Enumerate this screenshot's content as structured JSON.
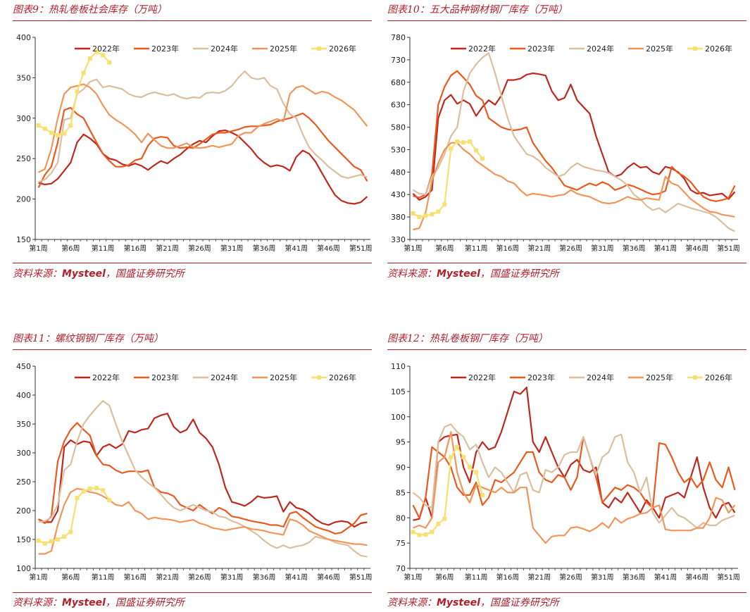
{
  "source_label": "资料来源：",
  "source_brand": "Mysteel",
  "source_rest": "，国盛证券研究所",
  "colors": {
    "2022年": "#c0281e",
    "2023年": "#ea5a1f",
    "2024年": "#dcbfa0",
    "2025年": "#f2955a",
    "2026年": "#f7e173",
    "accent": "#b3202a"
  },
  "panels": [
    {
      "title": "图表9：热轧卷板社会库存（万吨）"
    },
    {
      "title": "图表10：五大品种钢材钢厂库存（万吨）"
    },
    {
      "title": "图表11：螺纹钢钢厂库存（万吨）"
    },
    {
      "title": "图表12：热轧卷板钢厂库存（万吨）"
    }
  ],
  "chart_data": [
    {
      "type": "line",
      "title": "热轧卷板社会库存（万吨）",
      "ylim": [
        150,
        400
      ],
      "yticks": [
        150,
        200,
        250,
        300,
        350,
        400
      ],
      "xtick_labels": [
        "第1周",
        "第6周",
        "第11周",
        "第16周",
        "第21周",
        "第26周",
        "第31周",
        "第36周",
        "第41周",
        "第46周",
        "第51周"
      ],
      "series": [
        {
          "name": "2022年",
          "values": [
            220,
            218,
            219,
            225,
            235,
            245,
            270,
            280,
            275,
            268,
            256,
            250,
            248,
            243,
            241,
            244,
            241,
            236,
            242,
            247,
            244,
            250,
            255,
            262,
            268,
            272,
            270,
            278,
            284,
            285,
            282,
            278,
            270,
            262,
            252,
            245,
            240,
            242,
            240,
            235,
            252,
            260,
            256,
            246,
            232,
            218,
            205,
            198,
            195,
            194,
            196,
            203
          ]
        },
        {
          "name": "2023年",
          "values": [
            214,
            230,
            240,
            270,
            310,
            313,
            305,
            300,
            285,
            270,
            256,
            247,
            240,
            240,
            242,
            248,
            250,
            266,
            275,
            277,
            276,
            266,
            263,
            264,
            263,
            268,
            274,
            280,
            282,
            282,
            284,
            286,
            289,
            290,
            290,
            291,
            292,
            296,
            298,
            300,
            303,
            306,
            300,
            292,
            282,
            272,
            264,
            256,
            248,
            240,
            236,
            222
          ]
        },
        {
          "name": "2024年",
          "values": [
            221,
            224,
            232,
            245,
            298,
            300,
            330,
            336,
            345,
            348,
            338,
            340,
            338,
            336,
            330,
            327,
            326,
            330,
            332,
            330,
            328,
            330,
            326,
            324,
            326,
            325,
            331,
            332,
            331,
            334,
            340,
            350,
            358,
            350,
            348,
            350,
            340,
            336,
            318,
            305,
            300,
            280,
            264,
            255,
            248,
            240,
            234,
            228,
            226,
            228,
            230,
            227
          ]
        },
        {
          "name": "2025年",
          "values": [
            233,
            237,
            262,
            300,
            330,
            338,
            340,
            342,
            338,
            330,
            316,
            304,
            298,
            293,
            287,
            280,
            270,
            281,
            273,
            266,
            263,
            263,
            266,
            269,
            264,
            263,
            264,
            266,
            264,
            266,
            268,
            278,
            282,
            282,
            289,
            293,
            296,
            299,
            296,
            330,
            338,
            340,
            335,
            330,
            333,
            331,
            326,
            322,
            316,
            310,
            300,
            290
          ]
        },
        {
          "name": "2026年",
          "values": [
            291,
            287,
            282,
            279,
            281,
            291,
            333,
            356,
            374,
            382,
            378,
            369
          ]
        }
      ]
    },
    {
      "type": "line",
      "title": "五大品种钢材钢厂库存（万吨）",
      "ylim": [
        330,
        780
      ],
      "yticks": [
        330,
        380,
        430,
        480,
        530,
        580,
        630,
        680,
        730,
        780
      ],
      "xtick_labels": [
        "第1周",
        "第6周",
        "第11周",
        "第16周",
        "第21周",
        "第26周",
        "第31周",
        "第36周",
        "第41周",
        "第46周",
        "第51周"
      ],
      "series": [
        {
          "name": "2022年",
          "values": [
            432,
            418,
            425,
            440,
            600,
            640,
            652,
            632,
            640,
            632,
            605,
            625,
            640,
            630,
            650,
            685,
            685,
            688,
            697,
            700,
            698,
            695,
            660,
            640,
            645,
            675,
            640,
            625,
            610,
            560,
            520,
            480,
            470,
            475,
            490,
            500,
            490,
            492,
            480,
            475,
            492,
            488,
            480,
            465,
            440,
            432,
            434,
            428,
            430,
            432,
            420,
            436
          ]
        },
        {
          "name": "2023年",
          "values": [
            427,
            423,
            430,
            475,
            630,
            670,
            695,
            705,
            690,
            675,
            650,
            640,
            600,
            590,
            580,
            575,
            573,
            575,
            580,
            545,
            525,
            505,
            490,
            470,
            450,
            445,
            440,
            448,
            455,
            450,
            458,
            452,
            440,
            445,
            452,
            448,
            442,
            435,
            430,
            432,
            438,
            492,
            478,
            470,
            458,
            440,
            425,
            418,
            415,
            418,
            422,
            450
          ]
        },
        {
          "name": "2024年",
          "values": [
            440,
            432,
            430,
            470,
            490,
            520,
            560,
            580,
            660,
            700,
            720,
            735,
            745,
            700,
            650,
            600,
            560,
            540,
            520,
            515,
            505,
            490,
            480,
            470,
            475,
            490,
            500,
            492,
            488,
            484,
            482,
            478,
            470,
            462,
            450,
            430,
            420,
            405,
            395,
            400,
            390,
            400,
            410,
            405,
            400,
            396,
            392,
            388,
            380,
            368,
            355,
            348
          ]
        },
        {
          "name": "2025年",
          "values": [
            352,
            355,
            390,
            460,
            500,
            530,
            545,
            545,
            530,
            520,
            505,
            495,
            485,
            475,
            470,
            460,
            455,
            440,
            428,
            432,
            430,
            428,
            425,
            428,
            430,
            440,
            432,
            428,
            425,
            418,
            412,
            410,
            412,
            418,
            425,
            420,
            418,
            422,
            420,
            418,
            470,
            455,
            450,
            435,
            420,
            410,
            400,
            392,
            390,
            385,
            383,
            380
          ]
        },
        {
          "name": "2026年",
          "values": [
            388,
            380,
            383,
            386,
            392,
            408,
            532,
            548,
            546,
            548,
            528,
            510
          ]
        }
      ]
    },
    {
      "type": "line",
      "title": "螺纹钢钢厂库存（万吨）",
      "ylim": [
        100,
        450
      ],
      "yticks": [
        100,
        150,
        200,
        250,
        300,
        350,
        400,
        450
      ],
      "xtick_labels": [
        "第1周",
        "第6周",
        "第11周",
        "第16周",
        "第21周",
        "第26周",
        "第31周",
        "第36周",
        "第41周",
        "第46周",
        "第51周"
      ],
      "series": [
        {
          "name": "2022年",
          "values": [
            185,
            180,
            180,
            200,
            310,
            322,
            315,
            320,
            318,
            295,
            310,
            315,
            308,
            315,
            338,
            335,
            340,
            342,
            360,
            365,
            368,
            345,
            335,
            340,
            358,
            335,
            325,
            310,
            280,
            240,
            215,
            212,
            208,
            215,
            225,
            222,
            223,
            225,
            198,
            215,
            205,
            202,
            195,
            185,
            178,
            175,
            180,
            182,
            180,
            172,
            178,
            180
          ]
        },
        {
          "name": "2023年",
          "values": [
            185,
            178,
            190,
            285,
            320,
            340,
            352,
            340,
            330,
            295,
            280,
            278,
            270,
            265,
            268,
            268,
            267,
            270,
            240,
            232,
            230,
            225,
            210,
            205,
            200,
            210,
            202,
            195,
            205,
            200,
            190,
            188,
            185,
            182,
            180,
            178,
            175,
            175,
            172,
            195,
            198,
            188,
            180,
            172,
            168,
            165,
            160,
            162,
            170,
            178,
            192,
            195
          ]
        },
        {
          "name": "2024年",
          "values": [
            180,
            182,
            188,
            210,
            270,
            280,
            320,
            350,
            365,
            378,
            390,
            382,
            350,
            320,
            295,
            270,
            258,
            248,
            240,
            228,
            215,
            205,
            200,
            205,
            210,
            205,
            200,
            198,
            190,
            188,
            182,
            178,
            172,
            165,
            158,
            148,
            140,
            135,
            140,
            135,
            138,
            140,
            145,
            155,
            152,
            150,
            145,
            142,
            140,
            130,
            122,
            120
          ]
        },
        {
          "name": "2025年",
          "values": [
            125,
            125,
            130,
            175,
            210,
            232,
            238,
            236,
            232,
            230,
            225,
            218,
            210,
            208,
            215,
            200,
            195,
            185,
            188,
            186,
            185,
            183,
            180,
            182,
            184,
            178,
            175,
            170,
            168,
            166,
            168,
            170,
            172,
            168,
            167,
            165,
            162,
            160,
            158,
            185,
            182,
            175,
            165,
            160,
            155,
            150,
            148,
            146,
            144,
            142,
            142,
            140
          ]
        },
        {
          "name": "2026年",
          "values": [
            148,
            143,
            147,
            150,
            155,
            163,
            222,
            233,
            238,
            239,
            235,
            218
          ]
        }
      ]
    },
    {
      "type": "line",
      "title": "热轧卷板钢厂库存（万吨）",
      "ylim": [
        70,
        110
      ],
      "yticks": [
        70,
        75,
        80,
        85,
        90,
        95,
        100,
        105,
        110
      ],
      "xtick_labels": [
        "第1周",
        "第6周",
        "第11周",
        "第16周",
        "第21周",
        "第26周",
        "第31周",
        "第36周",
        "第41周",
        "第46周",
        "第51周"
      ],
      "series": [
        {
          "name": "2022年",
          "values": [
            79.5,
            79.8,
            84,
            80,
            95,
            96,
            96.3,
            96.5,
            90,
            87,
            93,
            95,
            93.5,
            94,
            97,
            101,
            105,
            104.5,
            105.8,
            95,
            93,
            96,
            93,
            90,
            88,
            90.5,
            91.5,
            89.5,
            89,
            90,
            83,
            82,
            84,
            83,
            85,
            83,
            81,
            83.5,
            82,
            80,
            84,
            84.5,
            85,
            84,
            88,
            92,
            86,
            82,
            80,
            82.5,
            83,
            81
          ]
        },
        {
          "name": "2023年",
          "values": [
            82.5,
            80,
            84,
            94,
            93,
            92,
            90,
            86,
            84.5,
            84.5,
            87,
            82.5,
            84,
            87.5,
            87,
            88,
            89,
            91,
            93,
            93,
            89,
            87.5,
            87,
            88.5,
            88,
            85.5,
            88,
            96,
            92,
            88,
            83,
            84.5,
            86,
            85.5,
            86.5,
            86,
            85,
            83,
            82,
            94.8,
            94.5,
            92,
            89,
            87,
            88,
            86,
            87.5,
            91,
            87.5,
            86,
            90,
            85.5
          ]
        },
        {
          "name": "2024年",
          "values": [
            85,
            84,
            82.5,
            82,
            95,
            98,
            98.5,
            97,
            96,
            93.5,
            94.5,
            91,
            88,
            90,
            89,
            87,
            85,
            88.5,
            89,
            85.5,
            85,
            89.5,
            89,
            90,
            92.5,
            93,
            93,
            96,
            92,
            88.5,
            92,
            93,
            96,
            96.5,
            91,
            89,
            85,
            88,
            81,
            79,
            80.5,
            82,
            80.5,
            80,
            79,
            78,
            79,
            78.5,
            78.5,
            79.5,
            80,
            80.5
          ]
        },
        {
          "name": "2025年",
          "values": [
            78,
            78.5,
            78,
            80,
            91,
            92,
            97,
            89,
            85,
            83,
            86.5,
            86,
            85.5,
            85,
            86,
            85,
            85,
            86,
            86,
            78,
            76.5,
            75,
            76.3,
            76.5,
            76.5,
            78,
            78.2,
            77.8,
            77.3,
            78,
            79,
            78,
            80,
            79,
            79.8,
            80.2,
            80.8,
            81,
            82,
            82.5,
            77.7,
            77.5,
            77.5,
            77.5,
            77.5,
            78,
            78,
            80,
            84,
            83.5,
            81,
            82.5
          ]
        },
        {
          "name": "2026年",
          "values": [
            77.2,
            76.6,
            76.7,
            77.2,
            78.8,
            79.8,
            92,
            94,
            92,
            90,
            89,
            84.5
          ]
        }
      ]
    }
  ]
}
